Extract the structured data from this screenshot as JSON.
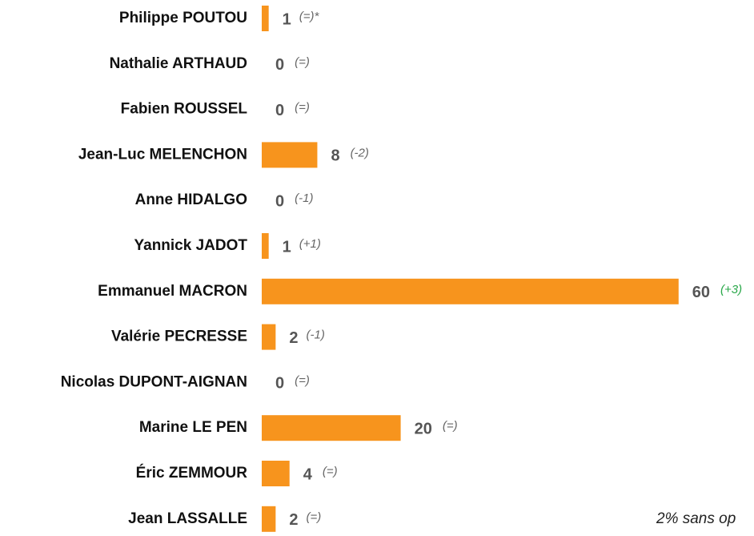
{
  "chart_data": {
    "type": "bar",
    "orientation": "horizontal",
    "categories": [
      "Philippe POUTOU",
      "Nathalie ARTHAUD",
      "Fabien ROUSSEL",
      "Jean-Luc MELENCHON",
      "Anne HIDALGO",
      "Yannick JADOT",
      "Emmanuel MACRON",
      "Valérie PECRESSE",
      "Nicolas DUPONT-AIGNAN",
      "Marine LE PEN",
      "Éric ZEMMOUR",
      "Jean LASSALLE"
    ],
    "values": [
      1,
      0,
      0,
      8,
      0,
      1,
      60,
      2,
      0,
      20,
      4,
      2
    ],
    "color": "#f7941d",
    "annotations": [
      "(=)*",
      "(=)",
      "(=)",
      "(-2)",
      "(-1)",
      "(+1)",
      "(+3)",
      "(-1)",
      "(=)",
      "(=)",
      "(=)",
      "(=)"
    ],
    "annotation_colors": [
      "#666666",
      "#666666",
      "#666666",
      "#666666",
      "#666666",
      "#666666",
      "#2aa84a",
      "#666666",
      "#666666",
      "#666666",
      "#666666",
      "#666666"
    ],
    "footnote": "2% sans op"
  }
}
